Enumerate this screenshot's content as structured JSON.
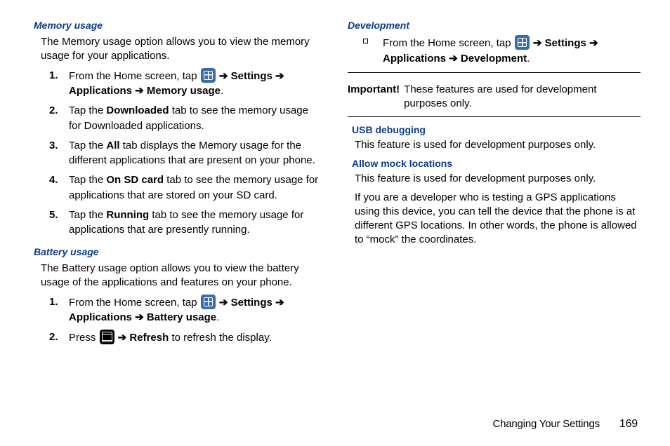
{
  "left": {
    "memory": {
      "heading": "Memory usage",
      "intro": "The Memory usage option allows you to view the memory usage for your applications.",
      "steps": [
        {
          "num": "1.",
          "pre": "From the Home screen, tap ",
          "icon": "apps",
          "post": " ➔ ",
          "b1": "Settings",
          "mid": " ➔ ",
          "b2": "Applications",
          "mid2": " ➔ ",
          "b3": "Memory usage",
          "tail": "."
        },
        {
          "num": "2.",
          "pre": "Tap the ",
          "b1": "Downloaded",
          "post": " tab to see the memory usage for Downloaded applications."
        },
        {
          "num": "3.",
          "pre": "Tap the ",
          "b1": "All",
          "post": " tab displays the Memory usage for the different applications that are present on your phone."
        },
        {
          "num": "4.",
          "pre": "Tap the ",
          "b1": "On SD card",
          "post": " tab to see the memory usage for applications that are stored on your SD card."
        },
        {
          "num": "5.",
          "pre": "Tap the ",
          "b1": "Running",
          "post": " tab to see the memory usage for applications that are presently running."
        }
      ]
    },
    "battery": {
      "heading": "Battery usage",
      "intro": "The Battery usage option allows you to view the battery usage of the applications and features on your phone.",
      "steps": [
        {
          "num": "1.",
          "pre": "From the Home screen, tap ",
          "icon": "apps",
          "post": " ➔ ",
          "b1": "Settings",
          "mid": " ➔ ",
          "b2": "Applications",
          "mid2": " ➔ ",
          "b3": "Battery usage",
          "tail": "."
        },
        {
          "num": "2.",
          "pre": "Press ",
          "icon": "menu",
          "post": " ➔ ",
          "b1": "Refresh",
          "tail": " to refresh the display."
        }
      ]
    }
  },
  "right": {
    "development": {
      "heading": "Development",
      "bullet": {
        "pre": "From the Home screen, tap ",
        "icon": "apps",
        "post": " ➔ ",
        "b1": "Settings",
        "mid": " ➔ ",
        "b2": "Applications",
        "mid2": " ➔ ",
        "b3": "Development",
        "tail": "."
      },
      "importantLabel": "Important!",
      "importantText": "These features are used for development purposes only."
    },
    "usb": {
      "heading": "USB debugging",
      "text": "This feature is used for development purposes only."
    },
    "mock": {
      "heading": "Allow mock locations",
      "p1": "This feature is used for development purposes only.",
      "p2": "If you are a developer who is testing a GPS applications using this device, you can tell the device that the phone is at different GPS locations. In other words, the phone is allowed to “mock” the coordinates."
    }
  },
  "footer": {
    "section": "Changing Your Settings",
    "page": "169"
  }
}
